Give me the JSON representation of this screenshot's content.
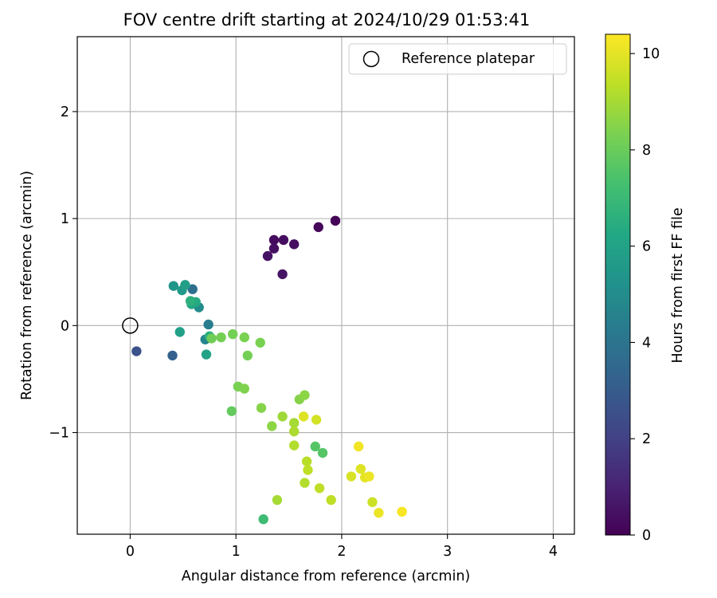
{
  "chart_data": {
    "type": "scatter",
    "title": "FOV centre drift starting at 2024/10/29 01:53:41",
    "xlabel": "Angular distance from reference (arcmin)",
    "ylabel": "Rotation from reference (arcmin)",
    "xlim": [
      -0.5,
      4.2
    ],
    "ylim": [
      -1.95,
      2.7
    ],
    "xticks": [
      0,
      1,
      2,
      3,
      4
    ],
    "xtick_labels": [
      "0",
      "1",
      "2",
      "3",
      "4"
    ],
    "yticks": [
      -1,
      0,
      1,
      2
    ],
    "ytick_labels": [
      "−1",
      "0",
      "1",
      "2"
    ],
    "grid": true,
    "legend": {
      "position": "top-right",
      "entries": [
        "Reference platepar"
      ]
    },
    "reference_point": {
      "x": 0,
      "y": 0,
      "marker": "open-circle"
    },
    "colorbar": {
      "label": "Hours from first FF file",
      "colormap": "viridis",
      "range": [
        0,
        10.4
      ],
      "ticks": [
        0,
        2,
        4,
        6,
        8,
        10
      ],
      "tick_labels": [
        "0",
        "2",
        "4",
        "6",
        "8",
        "10"
      ]
    },
    "points": [
      {
        "x": 1.94,
        "y": 0.98,
        "c": 0.1
      },
      {
        "x": 1.78,
        "y": 0.92,
        "c": 0.2
      },
      {
        "x": 1.36,
        "y": 0.8,
        "c": 0.3
      },
      {
        "x": 1.45,
        "y": 0.8,
        "c": 0.35
      },
      {
        "x": 1.55,
        "y": 0.76,
        "c": 0.4
      },
      {
        "x": 1.36,
        "y": 0.72,
        "c": 0.45
      },
      {
        "x": 1.3,
        "y": 0.65,
        "c": 0.5
      },
      {
        "x": 1.44,
        "y": 0.48,
        "c": 0.55
      },
      {
        "x": 0.06,
        "y": -0.24,
        "c": 2.6
      },
      {
        "x": 0.4,
        "y": -0.28,
        "c": 3.2
      },
      {
        "x": 0.59,
        "y": 0.34,
        "c": 3.8
      },
      {
        "x": 0.74,
        "y": 0.01,
        "c": 4.4
      },
      {
        "x": 0.71,
        "y": -0.13,
        "c": 4.7
      },
      {
        "x": 0.65,
        "y": 0.17,
        "c": 5.0
      },
      {
        "x": 0.41,
        "y": 0.37,
        "c": 5.4
      },
      {
        "x": 0.49,
        "y": 0.33,
        "c": 5.6
      },
      {
        "x": 0.52,
        "y": 0.38,
        "c": 5.8
      },
      {
        "x": 0.47,
        "y": -0.06,
        "c": 5.9
      },
      {
        "x": 0.72,
        "y": -0.27,
        "c": 6.0
      },
      {
        "x": 0.58,
        "y": 0.2,
        "c": 6.2
      },
      {
        "x": 0.62,
        "y": 0.22,
        "c": 6.3
      },
      {
        "x": 0.57,
        "y": 0.23,
        "c": 6.6
      },
      {
        "x": 0.75,
        "y": -0.1,
        "c": 6.5
      },
      {
        "x": 1.26,
        "y": -1.81,
        "c": 7.1
      },
      {
        "x": 1.75,
        "y": -1.13,
        "c": 7.6
      },
      {
        "x": 1.82,
        "y": -1.19,
        "c": 7.6
      },
      {
        "x": 0.96,
        "y": -0.8,
        "c": 7.9
      },
      {
        "x": 0.77,
        "y": -0.12,
        "c": 8.1
      },
      {
        "x": 0.86,
        "y": -0.11,
        "c": 8.2
      },
      {
        "x": 0.97,
        "y": -0.08,
        "c": 8.2
      },
      {
        "x": 1.08,
        "y": -0.11,
        "c": 8.3
      },
      {
        "x": 1.11,
        "y": -0.28,
        "c": 8.2
      },
      {
        "x": 1.23,
        "y": -0.16,
        "c": 8.3
      },
      {
        "x": 1.02,
        "y": -0.57,
        "c": 8.3
      },
      {
        "x": 1.08,
        "y": -0.59,
        "c": 8.4
      },
      {
        "x": 1.24,
        "y": -0.77,
        "c": 8.5
      },
      {
        "x": 1.34,
        "y": -0.94,
        "c": 8.6
      },
      {
        "x": 1.6,
        "y": -0.69,
        "c": 8.5
      },
      {
        "x": 1.65,
        "y": -0.65,
        "c": 8.6
      },
      {
        "x": 1.44,
        "y": -0.85,
        "c": 8.9
      },
      {
        "x": 1.39,
        "y": -1.63,
        "c": 9.0
      },
      {
        "x": 1.55,
        "y": -0.91,
        "c": 9.0
      },
      {
        "x": 1.55,
        "y": -0.99,
        "c": 9.1
      },
      {
        "x": 1.55,
        "y": -1.12,
        "c": 9.2
      },
      {
        "x": 1.65,
        "y": -1.47,
        "c": 9.2
      },
      {
        "x": 1.67,
        "y": -1.27,
        "c": 9.3
      },
      {
        "x": 1.68,
        "y": -1.35,
        "c": 9.4
      },
      {
        "x": 1.79,
        "y": -1.52,
        "c": 9.4
      },
      {
        "x": 1.9,
        "y": -1.63,
        "c": 9.4
      },
      {
        "x": 1.76,
        "y": -0.88,
        "c": 9.7
      },
      {
        "x": 1.64,
        "y": -0.85,
        "c": 9.9
      },
      {
        "x": 2.29,
        "y": -1.65,
        "c": 9.6
      },
      {
        "x": 2.09,
        "y": -1.41,
        "c": 9.8
      },
      {
        "x": 2.18,
        "y": -1.34,
        "c": 9.9
      },
      {
        "x": 2.22,
        "y": -1.42,
        "c": 10.0
      },
      {
        "x": 2.26,
        "y": -1.41,
        "c": 10.1
      },
      {
        "x": 2.16,
        "y": -1.13,
        "c": 10.2
      },
      {
        "x": 2.35,
        "y": -1.75,
        "c": 10.1
      },
      {
        "x": 2.57,
        "y": -1.74,
        "c": 10.3
      }
    ]
  }
}
